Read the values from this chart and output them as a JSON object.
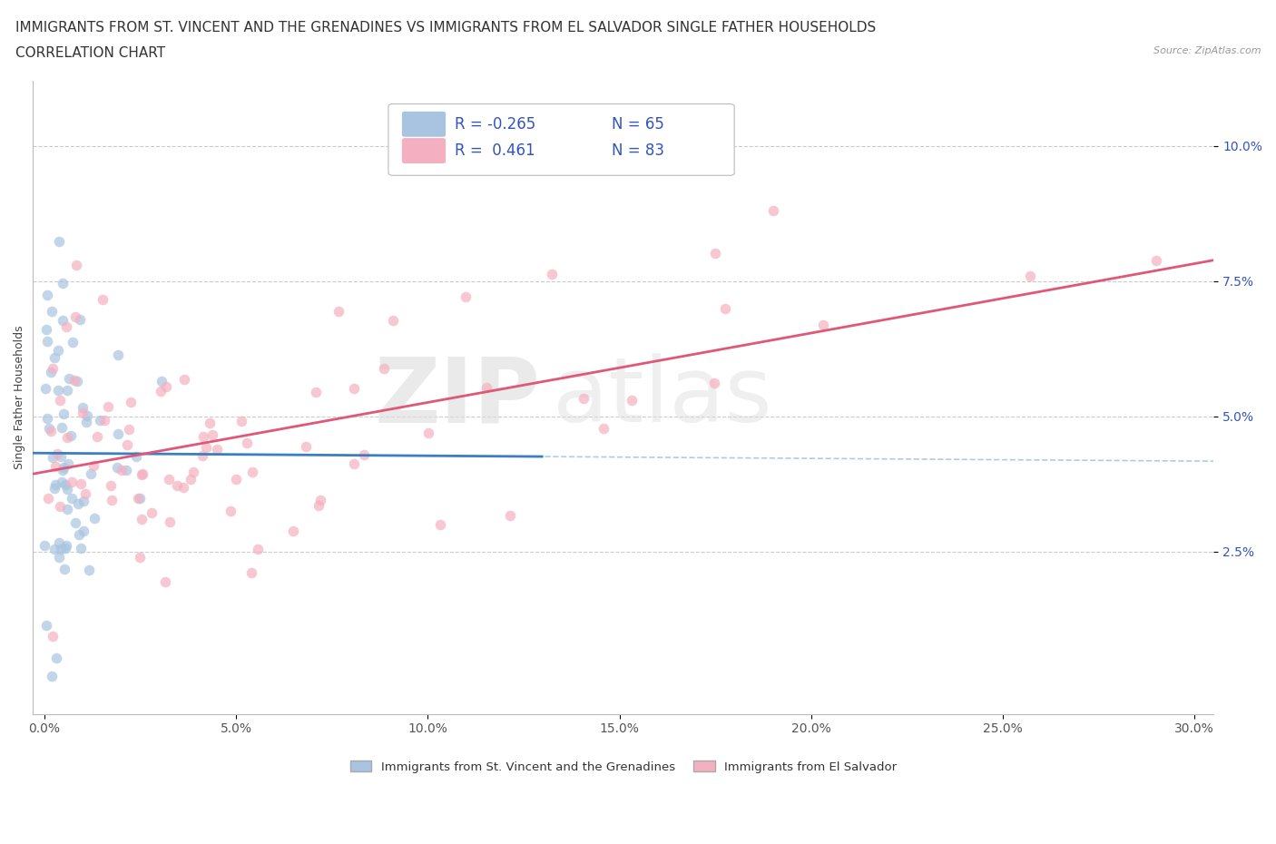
{
  "title_line1": "IMMIGRANTS FROM ST. VINCENT AND THE GRENADINES VS IMMIGRANTS FROM EL SALVADOR SINGLE FATHER HOUSEHOLDS",
  "title_line2": "CORRELATION CHART",
  "source_text": "Source: ZipAtlas.com",
  "ylabel": "Single Father Households",
  "yticks": [
    "2.5%",
    "5.0%",
    "7.5%",
    "10.0%"
  ],
  "ytick_values": [
    0.025,
    0.05,
    0.075,
    0.1
  ],
  "xlim": [
    -0.003,
    0.305
  ],
  "ylim": [
    -0.005,
    0.112
  ],
  "watermark1": "ZIP",
  "watermark2": "atlas",
  "series1_label": "Immigrants from St. Vincent and the Grenadines",
  "series1_color": "#a8c4e0",
  "series1_edge_color": "#6699cc",
  "series1_line_color": "#3a7fc1",
  "series1_R": "-0.265",
  "series1_N": "65",
  "series2_label": "Immigrants from El Salvador",
  "series2_color": "#f4b0c0",
  "series2_edge_color": "#e87090",
  "series2_line_color": "#e05878",
  "series2_R": "0.461",
  "series2_N": "83",
  "background_color": "#ffffff",
  "grid_color": "#cccccc",
  "title_fontsize": 11,
  "axis_label_fontsize": 9,
  "tick_fontsize": 10,
  "legend_text_color": "#3355bb"
}
